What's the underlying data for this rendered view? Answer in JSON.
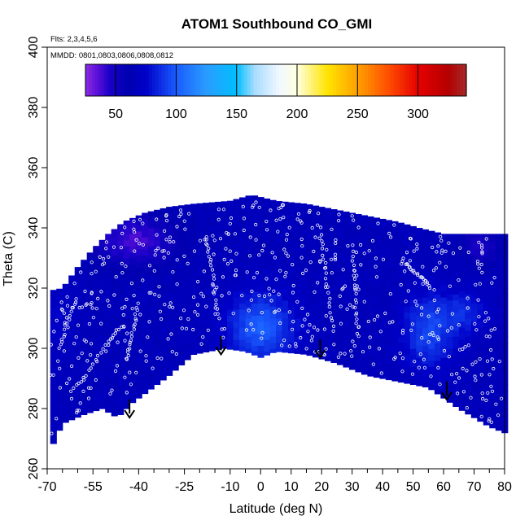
{
  "chart_data": {
    "type": "heatmap",
    "title": "ATOM1 Southbound CO_GMI",
    "annotations": {
      "flights": "Flts: 2,3,4,5,6",
      "dates": "MMDD: 0801,0803,0806,0808,0812"
    },
    "xlabel": "Latitude (deg N)",
    "ylabel": "Theta (C)",
    "xlim": [
      -70,
      80
    ],
    "ylim": [
      260,
      400
    ],
    "xticks_major": [
      -70,
      -55,
      -40,
      -25,
      -10,
      0,
      10,
      20,
      30,
      40,
      50,
      60,
      70,
      80
    ],
    "xtick_labels": [
      "-70",
      "-55",
      "-40",
      "-25",
      "-10",
      "0",
      "10",
      "20",
      "30",
      "40",
      "50",
      "60",
      "70",
      "80"
    ],
    "xticks_minor": [
      -65,
      -60,
      -50,
      -45,
      -35,
      -30,
      -20,
      -15,
      -5,
      5,
      15,
      25,
      35,
      45,
      55,
      65,
      75
    ],
    "yticks": [
      260,
      280,
      300,
      320,
      340,
      360,
      380,
      400
    ],
    "ytick_labels": [
      "260",
      "280",
      "300",
      "320",
      "340",
      "360",
      "380",
      "400"
    ],
    "colorbar": {
      "range": [
        25,
        340
      ],
      "ticks": [
        50,
        100,
        150,
        200,
        250,
        300
      ],
      "tick_labels": [
        "50",
        "100",
        "150",
        "200",
        "250",
        "300"
      ],
      "colors": [
        {
          "v": 25,
          "c": "#8a2be2"
        },
        {
          "v": 35,
          "c": "#5a10d8"
        },
        {
          "v": 45,
          "c": "#1a00c8"
        },
        {
          "v": 60,
          "c": "#0000b0"
        },
        {
          "v": 75,
          "c": "#0000c8"
        },
        {
          "v": 100,
          "c": "#1a5cff"
        },
        {
          "v": 125,
          "c": "#2a9cff"
        },
        {
          "v": 150,
          "c": "#00bfff"
        },
        {
          "v": 165,
          "c": "#a8dcff"
        },
        {
          "v": 185,
          "c": "#f0f8ff"
        },
        {
          "v": 200,
          "c": "#ffffe0"
        },
        {
          "v": 225,
          "c": "#ffe400"
        },
        {
          "v": 250,
          "c": "#ffa000"
        },
        {
          "v": 275,
          "c": "#ff5000"
        },
        {
          "v": 300,
          "c": "#e60000"
        },
        {
          "v": 325,
          "c": "#b40000"
        },
        {
          "v": 340,
          "c": "#a52a2a"
        }
      ]
    },
    "field": {
      "background_value": 66,
      "upper_envelope": [
        [
          -70,
          319
        ],
        [
          -65,
          320
        ],
        [
          -60,
          327
        ],
        [
          -55,
          333
        ],
        [
          -50,
          338
        ],
        [
          -45,
          342
        ],
        [
          -38,
          345
        ],
        [
          -30,
          347
        ],
        [
          -22,
          348
        ],
        [
          -10,
          349
        ],
        [
          -3,
          351
        ],
        [
          5,
          349
        ],
        [
          15,
          348
        ],
        [
          25,
          346
        ],
        [
          35,
          344
        ],
        [
          45,
          342
        ],
        [
          52,
          340
        ],
        [
          60,
          338
        ],
        [
          70,
          338
        ],
        [
          78,
          338
        ]
      ],
      "lower_envelope": [
        [
          -70,
          264
        ],
        [
          -65,
          275
        ],
        [
          -58,
          278
        ],
        [
          -52,
          280
        ],
        [
          -47,
          277
        ],
        [
          -42,
          282
        ],
        [
          -30,
          291
        ],
        [
          -22,
          298
        ],
        [
          -12,
          300
        ],
        [
          -5,
          299
        ],
        [
          0,
          297
        ],
        [
          5,
          299
        ],
        [
          15,
          298
        ],
        [
          25,
          295
        ],
        [
          35,
          291
        ],
        [
          45,
          289
        ],
        [
          55,
          287
        ],
        [
          65,
          280
        ],
        [
          75,
          274
        ],
        [
          80,
          272
        ]
      ],
      "blobs": [
        {
          "x": 0,
          "y": 307,
          "sx": 8,
          "sy": 8,
          "amp": 35
        },
        {
          "x": 55,
          "y": 306,
          "sx": 6,
          "sy": 9,
          "amp": 28
        },
        {
          "x": 67,
          "y": 312,
          "sx": 5,
          "sy": 5,
          "amp": 18
        },
        {
          "x": -42,
          "y": 336,
          "sx": 10,
          "sy": 6,
          "amp": -28
        },
        {
          "x": 72,
          "y": 334,
          "sx": 4,
          "sy": 4,
          "amp": -20
        },
        {
          "x": -66,
          "y": 310,
          "sx": 4,
          "sy": 10,
          "amp": 8
        }
      ]
    },
    "sample_tracks": [
      {
        "x": [
          -62,
          -58,
          -54,
          -50,
          -47,
          -44
        ],
        "y": [
          286,
          290,
          296,
          302,
          306,
          308
        ]
      },
      {
        "x": [
          -66,
          -64,
          -62,
          -60
        ],
        "y": [
          300,
          306,
          312,
          318
        ]
      },
      {
        "x": [
          -44,
          -43,
          -42,
          -41,
          -40
        ],
        "y": [
          296,
          300,
          305,
          310,
          316
        ]
      },
      {
        "x": [
          -18,
          -17,
          -16,
          -15,
          -14
        ],
        "y": [
          337,
          332,
          326,
          318,
          310
        ]
      },
      {
        "x": [
          20,
          21,
          22,
          23,
          24
        ],
        "y": [
          336,
          328,
          320,
          312,
          304
        ]
      },
      {
        "x": [
          30,
          30.5,
          31,
          31.5,
          32
        ],
        "y": [
          334,
          326,
          318,
          310,
          302
        ]
      },
      {
        "x": [
          48,
          50,
          52,
          54,
          56
        ],
        "y": [
          328,
          326,
          324,
          322,
          320
        ]
      }
    ],
    "arrows": [
      {
        "x": -43,
        "y_from": 283,
        "y_to": 277
      },
      {
        "x": -13,
        "y_from": 304,
        "y_to": 298
      },
      {
        "x": 19.5,
        "y_from": 303,
        "y_to": 297
      },
      {
        "x": 61,
        "y_from": 289,
        "y_to": 283
      }
    ]
  }
}
